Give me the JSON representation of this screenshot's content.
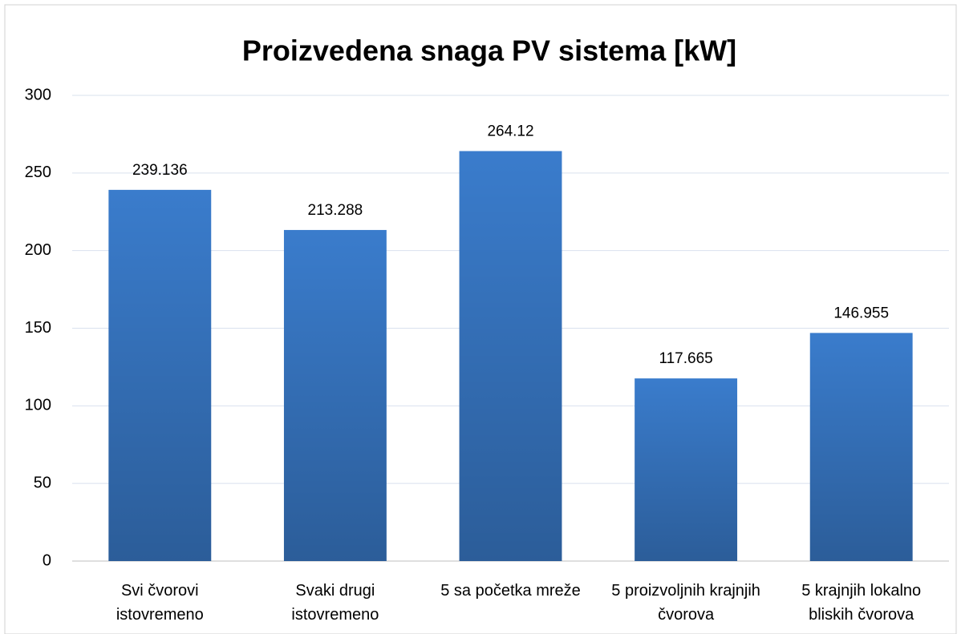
{
  "chart_data": {
    "type": "bar",
    "title": "Proizvedena snaga PV sistema [kW]",
    "categories": [
      "Svi čvorovi istovremeno",
      "Svaki drugi istovremeno",
      "5 sa početka mreže",
      "5 proizvoljnih krajnjih čvorova",
      "5 krajnjih lokalno bliskih čvorova"
    ],
    "values": [
      239.136,
      213.288,
      264.12,
      117.665,
      146.955
    ],
    "color": "#3a7ccc",
    "ylim": [
      0,
      300
    ],
    "yticks": [
      0,
      50,
      100,
      150,
      200,
      250,
      300
    ],
    "grid": true
  }
}
